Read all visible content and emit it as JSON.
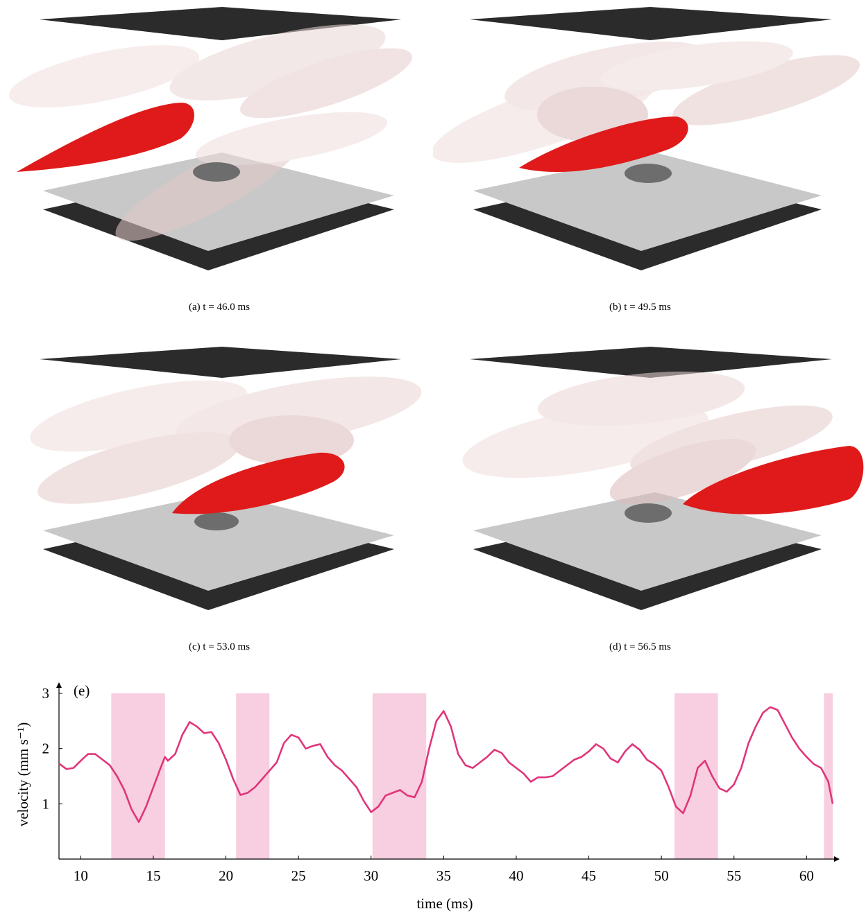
{
  "figure": {
    "captions": {
      "a": "(a) t = 46.0 ms",
      "b": "(b) t = 49.5 ms",
      "c": "(c) t = 53.0 ms",
      "d": "(d) t = 56.5 ms"
    },
    "colors": {
      "plate_dark": "#2b2b2b",
      "plate_light": "#c8c8c8",
      "vortex_red": "#e01a1a",
      "vortex_ghost": "#f1dada",
      "particle": "#6d6d6d"
    }
  },
  "chart_data": {
    "type": "line",
    "panel_label": "(e)",
    "xlabel": "time (ms)",
    "ylabel": "velocity (mm s⁻¹)",
    "xlim": [
      8.5,
      61.8
    ],
    "ylim": [
      0,
      3
    ],
    "xticks": [
      10,
      15,
      20,
      25,
      30,
      35,
      40,
      45,
      50,
      55,
      60
    ],
    "yticks": [
      1,
      2,
      3
    ],
    "grid": false,
    "line_color": "#e0357a",
    "shade_color": "#f7cfe0",
    "shaded_intervals": [
      [
        12.1,
        15.8
      ],
      [
        20.7,
        23.0
      ],
      [
        30.1,
        33.8
      ],
      [
        50.9,
        53.9
      ],
      [
        61.2,
        61.8
      ]
    ],
    "series": [
      {
        "x": [
          8.5,
          9.0,
          9.5,
          10.0,
          10.5,
          11.0,
          11.5,
          12.0,
          12.5,
          13.0,
          13.5,
          14.0,
          14.5,
          15.0,
          15.5,
          15.8,
          16.0,
          16.5,
          17.0,
          17.5,
          18.0,
          18.5,
          19.0,
          19.5,
          20.0,
          20.5,
          21.0,
          21.5,
          22.0,
          22.5,
          23.0,
          23.5,
          24.0,
          24.5,
          25.0,
          25.5,
          26.0,
          26.5,
          27.0,
          27.5,
          28.0,
          28.5,
          29.0,
          29.5,
          30.0,
          30.5,
          31.0,
          31.5,
          32.0,
          32.5,
          33.0,
          33.5,
          34.0,
          34.5,
          35.0,
          35.5,
          36.0,
          36.5,
          37.0,
          37.5,
          38.0,
          38.5,
          39.0,
          39.5,
          40.0,
          40.5,
          41.0,
          41.5,
          42.0,
          42.5,
          43.0,
          43.5,
          44.0,
          44.5,
          45.0,
          45.5,
          46.0,
          46.5,
          47.0,
          47.5,
          48.0,
          48.5,
          49.0,
          49.5,
          50.0,
          50.5,
          51.0,
          51.5,
          52.0,
          52.5,
          53.0,
          53.5,
          54.0,
          54.5,
          55.0,
          55.5,
          56.0,
          56.5,
          57.0,
          57.5,
          58.0,
          58.5,
          59.0,
          59.5,
          60.0,
          60.5,
          61.0,
          61.5,
          61.8
        ],
        "y": [
          1.73,
          1.63,
          1.65,
          1.78,
          1.9,
          1.9,
          1.8,
          1.7,
          1.5,
          1.25,
          0.9,
          0.67,
          0.95,
          1.3,
          1.65,
          1.85,
          1.78,
          1.9,
          2.25,
          2.48,
          2.4,
          2.28,
          2.3,
          2.1,
          1.8,
          1.45,
          1.16,
          1.2,
          1.3,
          1.45,
          1.6,
          1.75,
          2.1,
          2.25,
          2.2,
          2.0,
          2.05,
          2.08,
          1.85,
          1.7,
          1.6,
          1.45,
          1.3,
          1.05,
          0.85,
          0.95,
          1.15,
          1.2,
          1.25,
          1.15,
          1.12,
          1.4,
          2.0,
          2.5,
          2.68,
          2.4,
          1.9,
          1.7,
          1.65,
          1.75,
          1.85,
          1.98,
          1.92,
          1.75,
          1.65,
          1.55,
          1.4,
          1.48,
          1.48,
          1.5,
          1.6,
          1.7,
          1.8,
          1.85,
          1.95,
          2.08,
          2.0,
          1.82,
          1.75,
          1.95,
          2.08,
          1.98,
          1.8,
          1.72,
          1.6,
          1.3,
          0.95,
          0.83,
          1.15,
          1.65,
          1.78,
          1.5,
          1.28,
          1.22,
          1.35,
          1.65,
          2.1,
          2.4,
          2.65,
          2.75,
          2.7,
          2.45,
          2.2,
          2.0,
          1.85,
          1.72,
          1.65,
          1.4,
          1.0
        ]
      }
    ]
  }
}
